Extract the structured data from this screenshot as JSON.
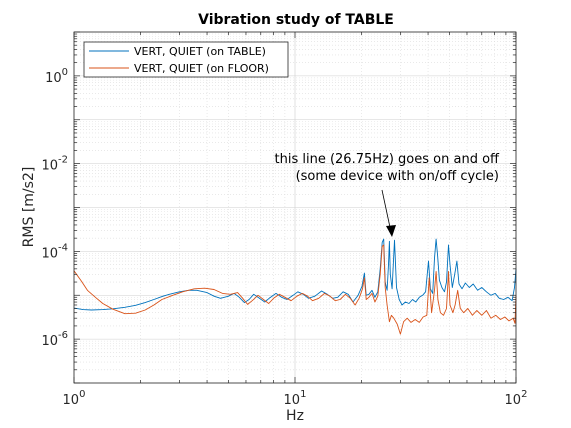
{
  "chart_data": {
    "type": "line",
    "title": "Vibration study of TABLE",
    "xlabel": "Hz",
    "ylabel": "RMS [m/s2]",
    "xscale": "log",
    "yscale": "log",
    "xlim": [
      1,
      100
    ],
    "ylim": [
      1e-07,
      10.0
    ],
    "grid": true,
    "minor_grid": true,
    "legend_position": "top-left",
    "x_tick_labels": [
      {
        "base": "10",
        "exp": "0"
      },
      {
        "base": "10",
        "exp": "1"
      },
      {
        "base": "10",
        "exp": "2"
      }
    ],
    "y_tick_labels": [
      {
        "base": "10",
        "exp": "-6"
      },
      {
        "base": "10",
        "exp": "-4"
      },
      {
        "base": "10",
        "exp": "-2"
      },
      {
        "base": "10",
        "exp": "0"
      }
    ],
    "annotation": {
      "line1": "this line (26.75Hz) goes on and off",
      "line2": "(some device with on/off cycle)",
      "target_x": 26.75,
      "target_y": 0.00017
    },
    "series": [
      {
        "name": "VERT, QUIET (on TABLE)",
        "color": "#0072BD",
        "points": [
          [
            1.0,
            5.1e-06
          ],
          [
            1.1,
            4.7e-06
          ],
          [
            1.2,
            4.6e-06
          ],
          [
            1.35,
            4.7e-06
          ],
          [
            1.5,
            4.9e-06
          ],
          [
            1.7,
            5.3e-06
          ],
          [
            1.9,
            5.9e-06
          ],
          [
            2.1,
            6.8e-06
          ],
          [
            2.3,
            8e-06
          ],
          [
            2.5,
            9.3e-06
          ],
          [
            2.7,
            1.05e-05
          ],
          [
            3.0,
            1.2e-05
          ],
          [
            3.3,
            1.3e-05
          ],
          [
            3.6,
            1.3e-05
          ],
          [
            4.0,
            1.15e-05
          ],
          [
            4.3,
            9.5e-06
          ],
          [
            4.6,
            8.5e-06
          ],
          [
            5.0,
            9.5e-06
          ],
          [
            5.3,
            1.1e-05
          ],
          [
            5.6,
            9e-06
          ],
          [
            5.9,
            6.8e-06
          ],
          [
            6.2,
            8e-06
          ],
          [
            6.5,
            1.05e-05
          ],
          [
            6.9,
            8.5e-06
          ],
          [
            7.3,
            7e-06
          ],
          [
            7.7,
            8.8e-06
          ],
          [
            8.2,
            1.1e-05
          ],
          [
            8.7,
            9e-06
          ],
          [
            9.2,
            8e-06
          ],
          [
            9.8,
            1e-05
          ],
          [
            10.3,
            1.2e-05
          ],
          [
            10.9,
            1.05e-05
          ],
          [
            11.5,
            8.5e-06
          ],
          [
            12.3,
            9.5e-06
          ],
          [
            13.2,
            1.25e-05
          ],
          [
            14.0,
            1.05e-05
          ],
          [
            14.8,
            8.5e-06
          ],
          [
            15.6,
            9e-06
          ],
          [
            16.5,
            1.2e-05
          ],
          [
            17.4,
            1.05e-05
          ],
          [
            18.3,
            7e-06
          ],
          [
            19.3,
            1e-05
          ],
          [
            20.1,
            1.6e-05
          ],
          [
            20.6,
            3.2e-05
          ],
          [
            21.0,
            1e-05
          ],
          [
            21.6,
            1.05e-05
          ],
          [
            22.3,
            1.3e-05
          ],
          [
            23.0,
            9e-06
          ],
          [
            23.7,
            1.2e-05
          ],
          [
            24.3,
            4e-05
          ],
          [
            24.8,
            0.00016
          ],
          [
            25.2,
            0.00019
          ],
          [
            25.6,
            2e-05
          ],
          [
            26.1,
            1.3e-05
          ],
          [
            26.5,
            5e-05
          ],
          [
            26.75,
            0.00017
          ],
          [
            27.0,
            3e-05
          ],
          [
            27.5,
            1.4e-05
          ],
          [
            28.2,
            0.00018
          ],
          [
            28.8,
            1.5e-05
          ],
          [
            29.6,
            8e-06
          ],
          [
            30.5,
            6e-06
          ],
          [
            31.6,
            7e-06
          ],
          [
            32.8,
            6.5e-06
          ],
          [
            34.0,
            8e-06
          ],
          [
            35.2,
            7e-06
          ],
          [
            36.5,
            9e-06
          ],
          [
            37.8,
            1e-05
          ],
          [
            39.0,
            1.2e-05
          ],
          [
            40.2,
            6e-05
          ],
          [
            41.0,
            1.4e-05
          ],
          [
            42.0,
            1.1e-05
          ],
          [
            42.8,
            7e-05
          ],
          [
            43.5,
            0.00019
          ],
          [
            44.2,
            8e-05
          ],
          [
            45.0,
            2.2e-05
          ],
          [
            46.2,
            1.5e-05
          ],
          [
            47.5,
            1.2e-05
          ],
          [
            48.5,
            2e-05
          ],
          [
            49.5,
            0.00014
          ],
          [
            50.3,
            5e-05
          ],
          [
            51.5,
            1.5e-05
          ],
          [
            52.8,
            3e-05
          ],
          [
            54.0,
            6e-05
          ],
          [
            55.2,
            1.8e-05
          ],
          [
            57.0,
            1.4e-05
          ],
          [
            59.0,
            1.9e-05
          ],
          [
            61.5,
            1.5e-05
          ],
          [
            64.0,
            1.8e-05
          ],
          [
            67.0,
            1.3e-05
          ],
          [
            70.0,
            1.5e-05
          ],
          [
            73.5,
            1.2e-05
          ],
          [
            77.0,
            1e-05
          ],
          [
            80.5,
            1.1e-05
          ],
          [
            84.0,
            8.5e-06
          ],
          [
            88.0,
            8e-06
          ],
          [
            92.0,
            9e-06
          ],
          [
            96.0,
            7.5e-06
          ],
          [
            98.5,
            1.5e-05
          ],
          [
            100.0,
            4e-05
          ]
        ]
      },
      {
        "name": "VERT, QUIET (on FLOOR)",
        "color": "#D95319",
        "points": [
          [
            1.0,
            3.6e-05
          ],
          [
            1.08,
            2.1e-05
          ],
          [
            1.15,
            1.3e-05
          ],
          [
            1.25,
            9e-06
          ],
          [
            1.35,
            6.5e-06
          ],
          [
            1.5,
            4.8e-06
          ],
          [
            1.7,
            3.8e-06
          ],
          [
            1.9,
            3.9e-06
          ],
          [
            2.1,
            4.6e-06
          ],
          [
            2.3,
            6e-06
          ],
          [
            2.5,
            8e-06
          ],
          [
            2.8,
            1e-05
          ],
          [
            3.1,
            1.2e-05
          ],
          [
            3.5,
            1.4e-05
          ],
          [
            3.9,
            1.45e-05
          ],
          [
            4.3,
            1.35e-05
          ],
          [
            4.7,
            1.1e-05
          ],
          [
            5.1,
            1.05e-05
          ],
          [
            5.5,
            1.15e-05
          ],
          [
            5.8,
            8.5e-06
          ],
          [
            6.1,
            6.2e-06
          ],
          [
            6.4,
            7.5e-06
          ],
          [
            6.8,
            1e-05
          ],
          [
            7.2,
            8e-06
          ],
          [
            7.6,
            6.5e-06
          ],
          [
            8.0,
            8.5e-06
          ],
          [
            8.5,
            1.05e-05
          ],
          [
            9.0,
            9e-06
          ],
          [
            9.6,
            7.5e-06
          ],
          [
            10.2,
            9.5e-06
          ],
          [
            10.8,
            1.1e-05
          ],
          [
            11.4,
            9.5e-06
          ],
          [
            12.0,
            7.5e-06
          ],
          [
            12.8,
            8.5e-06
          ],
          [
            13.6,
            1.1e-05
          ],
          [
            14.4,
            9.5e-06
          ],
          [
            15.2,
            7.5e-06
          ],
          [
            16.0,
            8e-06
          ],
          [
            16.9,
            1.05e-05
          ],
          [
            17.8,
            8.5e-06
          ],
          [
            18.7,
            6e-06
          ],
          [
            19.5,
            8.5e-06
          ],
          [
            20.2,
            1.4e-05
          ],
          [
            20.6,
            2.5e-05
          ],
          [
            21.0,
            8e-06
          ],
          [
            21.6,
            9e-06
          ],
          [
            22.3,
            1.1e-05
          ],
          [
            23.0,
            7e-06
          ],
          [
            23.7,
            9.5e-06
          ],
          [
            24.3,
            3e-05
          ],
          [
            24.8,
            0.00013
          ],
          [
            25.2,
            0.00014
          ],
          [
            25.6,
            1.5e-05
          ],
          [
            26.1,
            6e-06
          ],
          [
            26.75,
            2.5e-06
          ],
          [
            27.3,
            3.5e-06
          ],
          [
            28.0,
            3e-06
          ],
          [
            29.0,
            2.2e-06
          ],
          [
            30.0,
            1.3e-06
          ],
          [
            31.0,
            2.5e-06
          ],
          [
            32.2,
            3e-06
          ],
          [
            33.5,
            2.4e-06
          ],
          [
            35.0,
            2.8e-06
          ],
          [
            36.5,
            2.4e-06
          ],
          [
            38.0,
            3.2e-06
          ],
          [
            39.5,
            3.5e-06
          ],
          [
            40.5,
            2.5e-05
          ],
          [
            41.5,
            4e-06
          ],
          [
            42.8,
            1.3e-05
          ],
          [
            43.5,
            3.5e-05
          ],
          [
            44.3,
            8e-06
          ],
          [
            45.5,
            4e-06
          ],
          [
            47.0,
            3.5e-06
          ],
          [
            48.5,
            5e-06
          ],
          [
            49.5,
            3.5e-05
          ],
          [
            50.3,
            6e-06
          ],
          [
            51.8,
            4e-06
          ],
          [
            53.0,
            6e-06
          ],
          [
            54.5,
            1.3e-05
          ],
          [
            56.0,
            5e-06
          ],
          [
            58.0,
            4e-06
          ],
          [
            60.5,
            5e-06
          ],
          [
            63.5,
            3.5e-06
          ],
          [
            66.5,
            4.5e-06
          ],
          [
            70.0,
            3.5e-06
          ],
          [
            73.5,
            4.5e-06
          ],
          [
            77.0,
            3e-06
          ],
          [
            81.0,
            3.5e-06
          ],
          [
            85.0,
            2.8e-06
          ],
          [
            89.0,
            3.2e-06
          ],
          [
            93.0,
            2.6e-06
          ],
          [
            97.0,
            3e-06
          ],
          [
            99.0,
            2.3e-06
          ],
          [
            100.0,
            1e-05
          ]
        ]
      }
    ]
  }
}
